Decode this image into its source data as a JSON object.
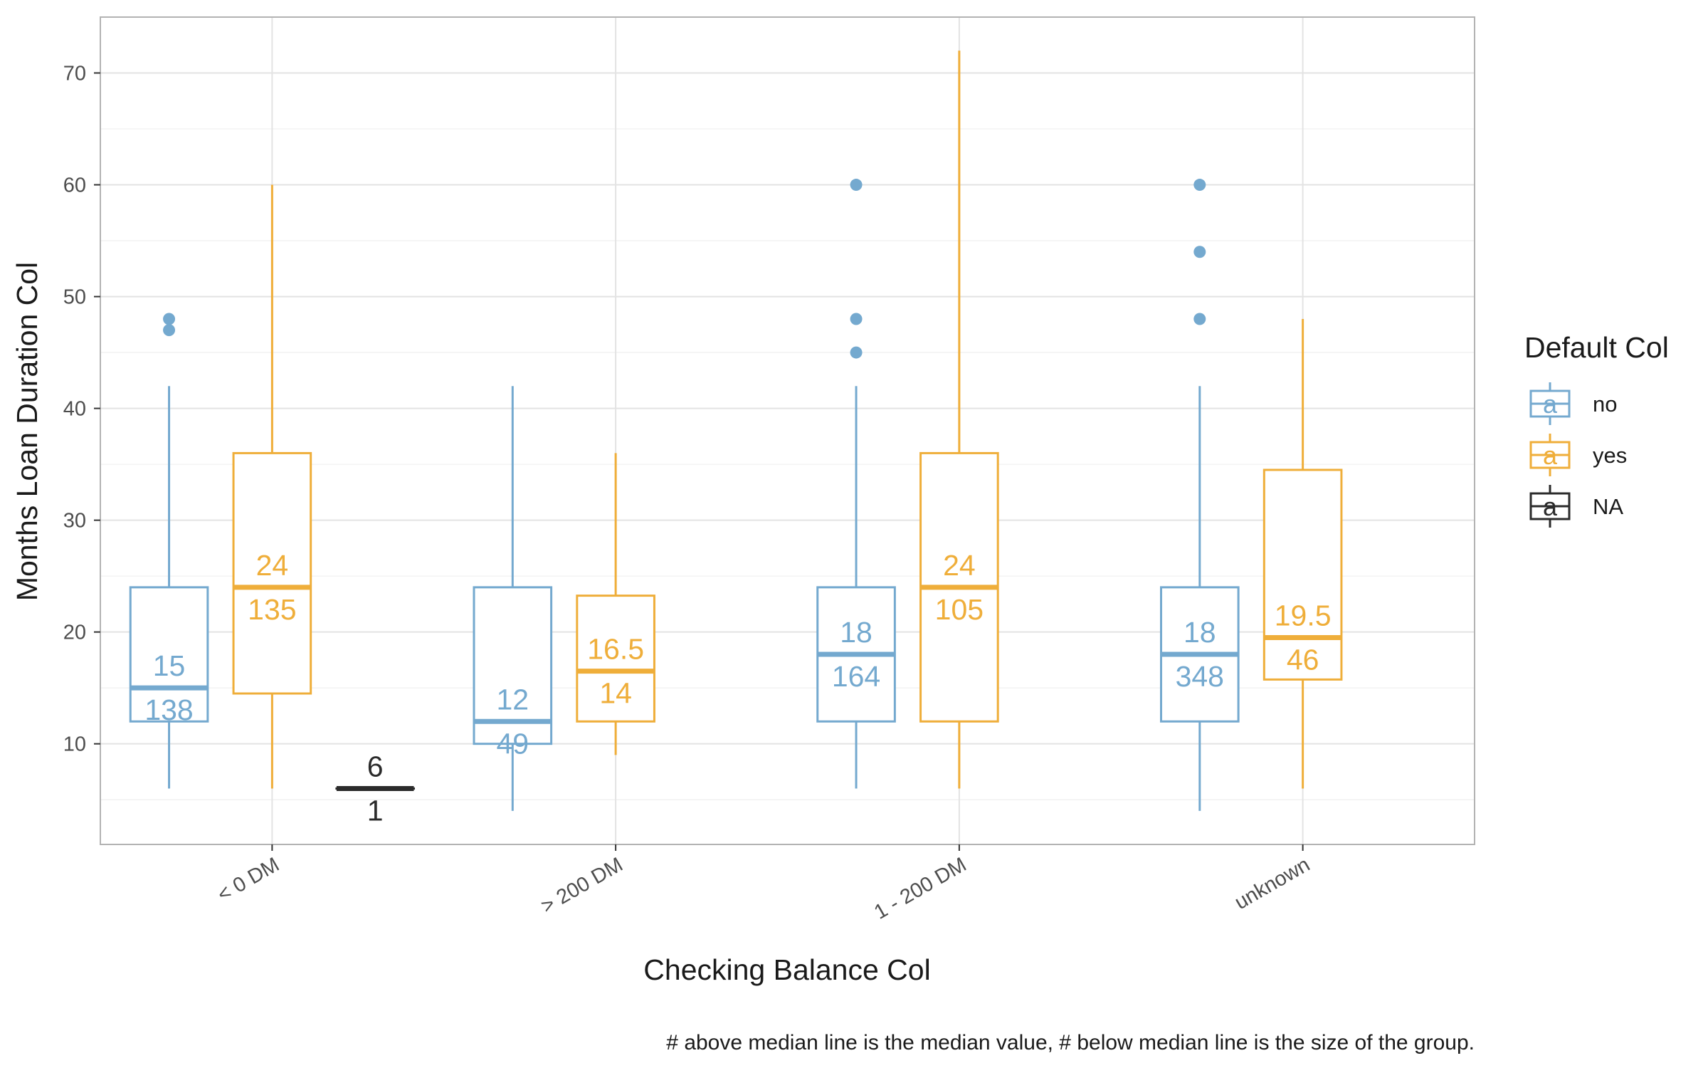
{
  "chart_data": {
    "type": "boxplot",
    "xlabel": "Checking Balance Col",
    "ylabel": "Months Loan Duration Col",
    "categories": [
      "< 0 DM",
      "> 200 DM",
      "1 - 200 DM",
      "unknown"
    ],
    "ylim": [
      1,
      75
    ],
    "yticks": [
      10,
      20,
      30,
      40,
      50,
      60,
      70
    ],
    "grid": true,
    "legend": {
      "title": "Default Col",
      "position": "right",
      "glyph": "a",
      "items": [
        {
          "label": "no",
          "color": "#74a9cf"
        },
        {
          "label": "yes",
          "color": "#efae3a"
        },
        {
          "label": "NA",
          "color": "#2b2b2b"
        }
      ]
    },
    "series": [
      {
        "name": "no",
        "color": "#74a9cf",
        "boxes": [
          {
            "category": "< 0 DM",
            "whisker_low": 6,
            "q1": 12,
            "median": 15,
            "q3": 24,
            "whisker_high": 42,
            "outliers": [
              47,
              48
            ],
            "median_label": "15",
            "n_label": "138"
          },
          {
            "category": "> 200 DM",
            "whisker_low": 4,
            "q1": 10,
            "median": 12,
            "q3": 24,
            "whisker_high": 42,
            "outliers": [],
            "median_label": "12",
            "n_label": "49"
          },
          {
            "category": "1 - 200 DM",
            "whisker_low": 6,
            "q1": 12,
            "median": 18,
            "q3": 24,
            "whisker_high": 42,
            "outliers": [
              45,
              48,
              60
            ],
            "median_label": "18",
            "n_label": "164"
          },
          {
            "category": "unknown",
            "whisker_low": 4,
            "q1": 12,
            "median": 18,
            "q3": 24,
            "whisker_high": 42,
            "outliers": [
              48,
              54,
              60
            ],
            "median_label": "18",
            "n_label": "348"
          }
        ]
      },
      {
        "name": "yes",
        "color": "#efae3a",
        "boxes": [
          {
            "category": "< 0 DM",
            "whisker_low": 6,
            "q1": 14.5,
            "median": 24,
            "q3": 36,
            "whisker_high": 60,
            "outliers": [],
            "median_label": "24",
            "n_label": "135"
          },
          {
            "category": "> 200 DM",
            "whisker_low": 9,
            "q1": 12,
            "median": 16.5,
            "q3": 23.25,
            "whisker_high": 36,
            "outliers": [],
            "median_label": "16.5",
            "n_label": "14"
          },
          {
            "category": "1 - 200 DM",
            "whisker_low": 6,
            "q1": 12,
            "median": 24,
            "q3": 36,
            "whisker_high": 72,
            "outliers": [],
            "median_label": "24",
            "n_label": "105"
          },
          {
            "category": "unknown",
            "whisker_low": 6,
            "q1": 15.75,
            "median": 19.5,
            "q3": 34.5,
            "whisker_high": 48,
            "outliers": [],
            "median_label": "19.5",
            "n_label": "46"
          }
        ]
      },
      {
        "name": "NA",
        "color": "#2b2b2b",
        "boxes": [
          {
            "category": "< 0 DM",
            "whisker_low": 6,
            "q1": 6,
            "median": 6,
            "q3": 6,
            "whisker_high": 6,
            "outliers": [],
            "median_label": "6",
            "n_label": "1"
          }
        ]
      }
    ]
  },
  "caption": "# above median line is the median value, # below median line is the size of the group."
}
